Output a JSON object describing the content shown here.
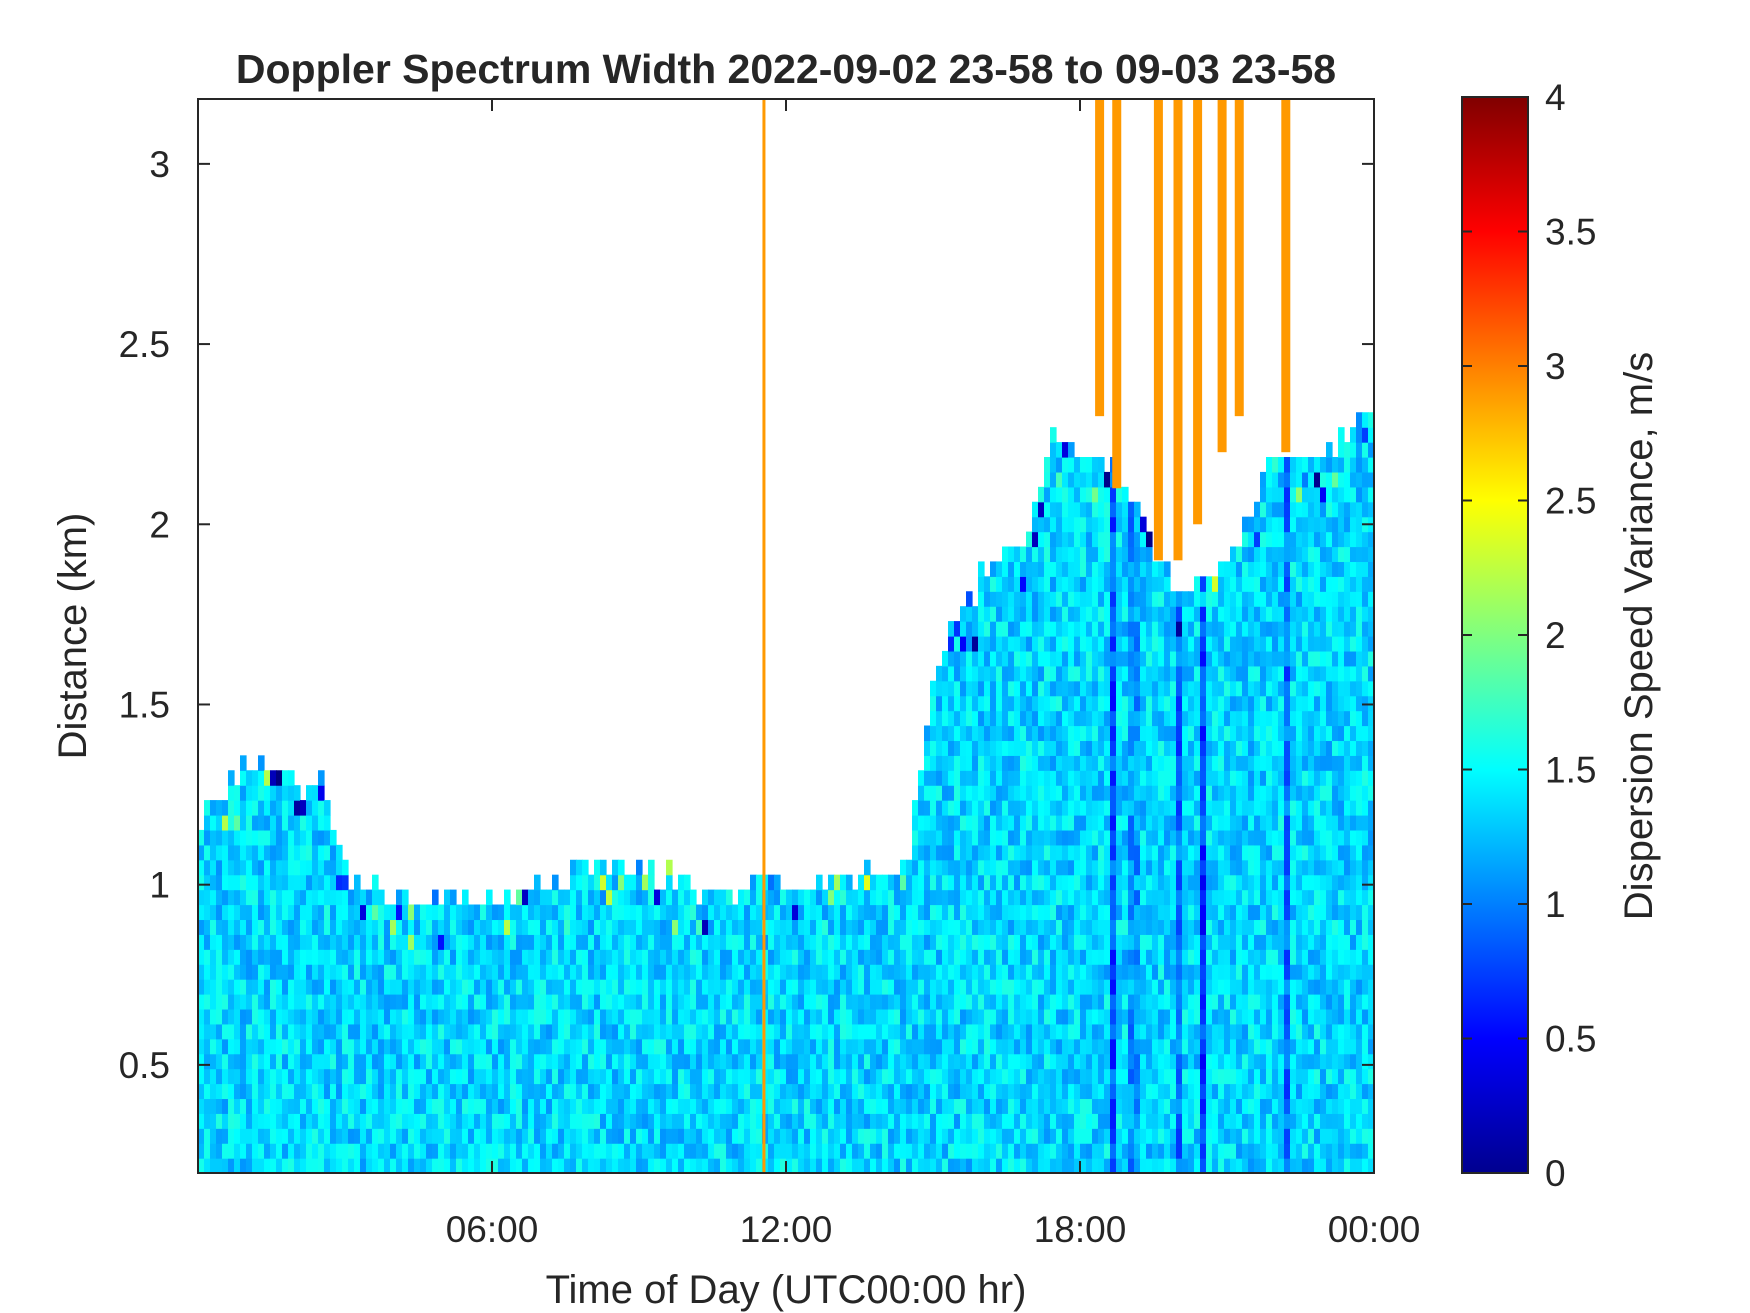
{
  "chart_data": {
    "type": "heatmap",
    "title": "Doppler Spectrum Width 2022-09-02 23-58 to 09-03 23-58",
    "xlabel": "Time of Day (UTC00:00 hr)",
    "ylabel": "Distance (km)",
    "colorbar_label": "Dispersion Speed Variance, m/s",
    "colormap": "jet",
    "xlim_hours": [
      0,
      24
    ],
    "ylim": [
      0.2,
      3.18
    ],
    "clim": [
      0,
      4
    ],
    "x_ticks": [
      {
        "value": 6,
        "label": "06:00"
      },
      {
        "value": 12,
        "label": "12:00"
      },
      {
        "value": 18,
        "label": "18:00"
      },
      {
        "value": 24,
        "label": "00:00"
      }
    ],
    "y_ticks": [
      {
        "value": 0.5,
        "label": "0.5"
      },
      {
        "value": 1,
        "label": "1"
      },
      {
        "value": 1.5,
        "label": "1.5"
      },
      {
        "value": 2,
        "label": "2"
      },
      {
        "value": 2.5,
        "label": "2.5"
      },
      {
        "value": 3,
        "label": "3"
      }
    ],
    "colorbar_ticks": [
      {
        "value": 0,
        "label": "0"
      },
      {
        "value": 0.5,
        "label": "0.5"
      },
      {
        "value": 1,
        "label": "1"
      },
      {
        "value": 1.5,
        "label": "1.5"
      },
      {
        "value": 2,
        "label": "2"
      },
      {
        "value": 2.5,
        "label": "2.5"
      },
      {
        "value": 3,
        "label": "3"
      },
      {
        "value": 3.5,
        "label": "3.5"
      },
      {
        "value": 4,
        "label": "4"
      }
    ],
    "signal_top_km": [
      [
        0.0,
        1.2
      ],
      [
        0.5,
        1.27
      ],
      [
        1.0,
        1.33
      ],
      [
        1.5,
        1.3
      ],
      [
        2.0,
        1.28
      ],
      [
        2.5,
        1.3
      ],
      [
        3.0,
        1.05
      ],
      [
        3.5,
        1.0
      ],
      [
        4.0,
        0.96
      ],
      [
        5.0,
        0.97
      ],
      [
        6.0,
        0.97
      ],
      [
        7.0,
        1.0
      ],
      [
        8.0,
        1.05
      ],
      [
        9.0,
        1.05
      ],
      [
        10.0,
        1.0
      ],
      [
        11.0,
        0.98
      ],
      [
        11.5,
        1.0
      ],
      [
        12.0,
        1.0
      ],
      [
        13.0,
        1.05
      ],
      [
        14.0,
        1.03
      ],
      [
        14.5,
        1.05
      ],
      [
        15.0,
        1.6
      ],
      [
        15.5,
        1.75
      ],
      [
        16.0,
        1.85
      ],
      [
        17.0,
        2.0
      ],
      [
        17.5,
        2.25
      ],
      [
        18.0,
        2.2
      ],
      [
        19.0,
        2.1
      ],
      [
        20.0,
        1.8
      ],
      [
        21.0,
        1.9
      ],
      [
        22.0,
        2.2
      ],
      [
        23.0,
        2.2
      ],
      [
        24.0,
        2.3
      ]
    ],
    "clear_patch": {
      "x_range": [
        12.0,
        14.4
      ],
      "y_range": [
        0.95,
        1.7
      ]
    },
    "mean_width_ms": 1.35,
    "low_width_columns": [
      {
        "x": 18.7,
        "value": 0.3
      },
      {
        "x": 19.1,
        "value": 0.6
      },
      {
        "x": 20.0,
        "value": 0.4
      },
      {
        "x": 20.5,
        "value": 0.2
      },
      {
        "x": 22.2,
        "value": 0.4
      }
    ],
    "high_width_columns": [
      {
        "x": 11.55,
        "value": 2.9,
        "y_range": [
          0.2,
          3.18
        ]
      },
      {
        "x": 18.4,
        "value": 2.9,
        "y_range": [
          2.3,
          3.18
        ]
      },
      {
        "x": 18.75,
        "value": 2.9,
        "y_range": [
          2.1,
          3.18
        ]
      },
      {
        "x": 19.6,
        "value": 2.9,
        "y_range": [
          1.9,
          3.18
        ]
      },
      {
        "x": 20.0,
        "value": 2.9,
        "y_range": [
          1.9,
          3.18
        ]
      },
      {
        "x": 20.4,
        "value": 2.9,
        "y_range": [
          2.0,
          3.18
        ]
      },
      {
        "x": 20.9,
        "value": 2.9,
        "y_range": [
          2.2,
          3.18
        ]
      },
      {
        "x": 21.25,
        "value": 2.9,
        "y_range": [
          2.3,
          3.18
        ]
      },
      {
        "x": 22.2,
        "value": 2.9,
        "y_range": [
          2.2,
          3.18
        ]
      }
    ]
  }
}
